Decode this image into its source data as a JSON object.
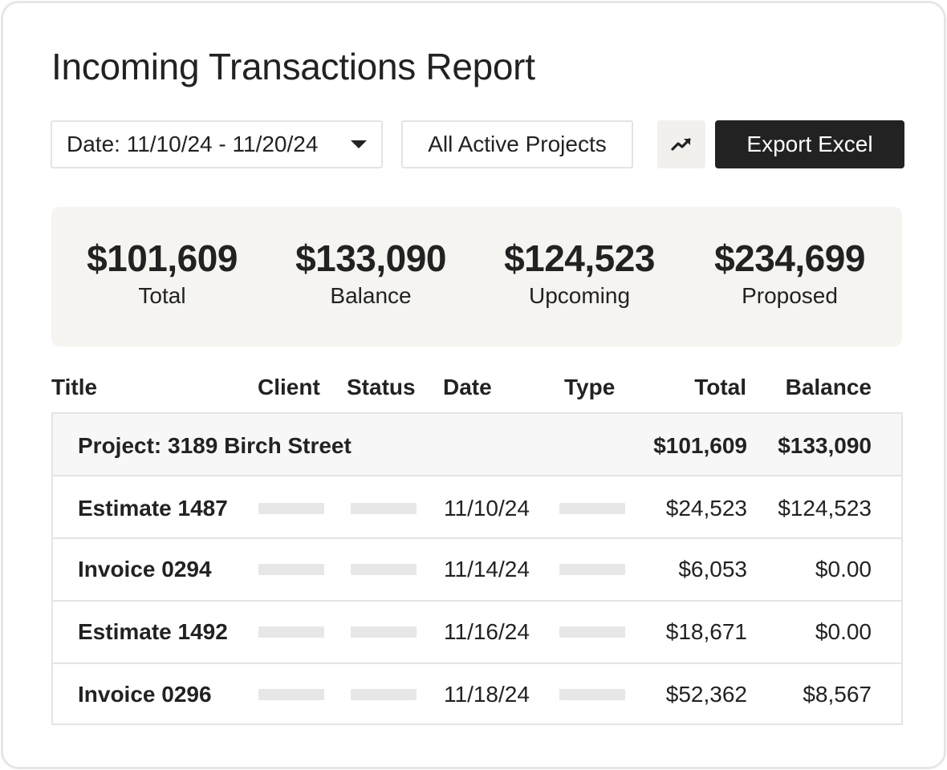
{
  "page": {
    "title": "Incoming Transactions Report"
  },
  "filters": {
    "date_range": "Date: 11/10/24 - 11/20/24",
    "projects": "All Active Projects"
  },
  "toolbar": {
    "trend_icon": "trending-up-icon",
    "export_label": "Export Excel"
  },
  "summary": [
    {
      "value": "$101,609",
      "label": "Total"
    },
    {
      "value": "$133,090",
      "label": "Balance"
    },
    {
      "value": "$124,523",
      "label": "Upcoming"
    },
    {
      "value": "$234,699",
      "label": "Proposed"
    }
  ],
  "table": {
    "columns": [
      "Title",
      "Client",
      "Status",
      "Date",
      "Type",
      "Total",
      "Balance"
    ],
    "group": {
      "title": "Project: 3189 Birch Street",
      "total": "$101,609",
      "balance": "$133,090"
    },
    "rows": [
      {
        "title": "Estimate 1487",
        "date": "11/10/24",
        "total": "$24,523",
        "balance": "$124,523"
      },
      {
        "title": "Invoice 0294",
        "date": "11/14/24",
        "total": "$6,053",
        "balance": "$0.00"
      },
      {
        "title": "Estimate 1492",
        "date": "11/16/24",
        "total": "$18,671",
        "balance": "$0.00"
      },
      {
        "title": "Invoice 0296",
        "date": "11/18/24",
        "total": "$52,362",
        "balance": "$8,567"
      }
    ]
  },
  "colors": {
    "accent_dark": "#222222",
    "panel_bg": "#f5f4f1",
    "border": "#e4e4e4"
  }
}
